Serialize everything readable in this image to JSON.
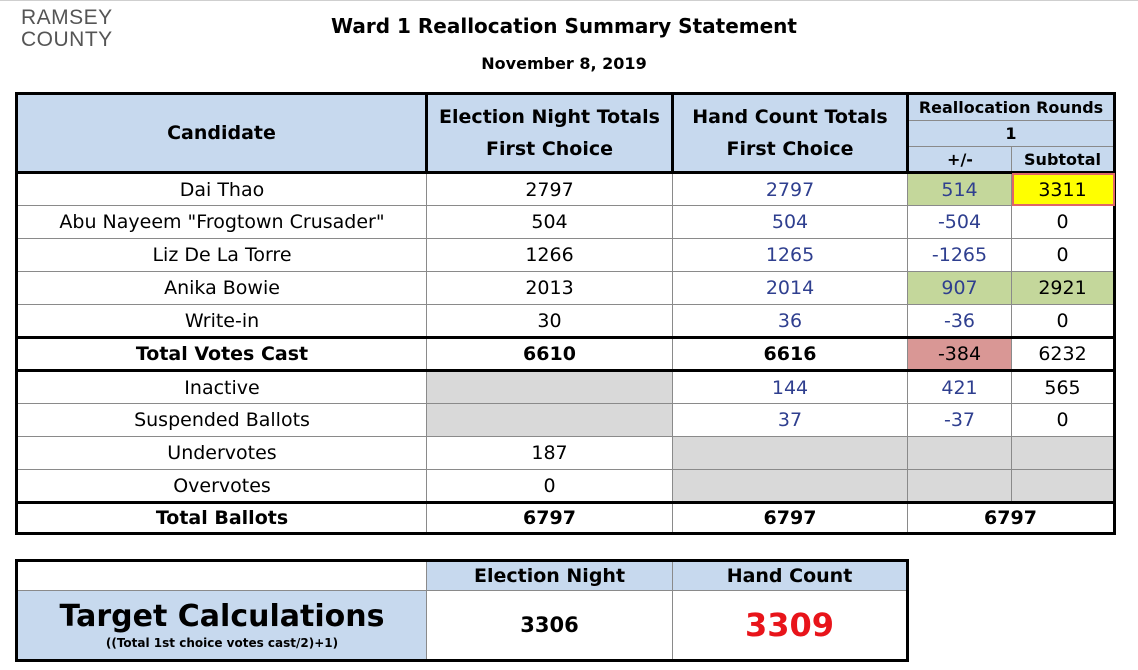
{
  "header": {
    "logo_line1": "RAMSEY",
    "logo_line2": "COUNTY",
    "title": "Ward 1 Reallocation Summary Statement",
    "date": "November 8, 2019"
  },
  "table": {
    "col_candidate": "Candidate",
    "col_election_line1": "Election Night Totals",
    "col_election_line2": "First Choice",
    "col_hand_line1": "Hand Count Totals",
    "col_hand_line2": "First Choice",
    "col_realloc": "Reallocation Rounds",
    "round": "1",
    "col_plusminus": "+/-",
    "col_subtotal": "Subtotal",
    "rows": [
      {
        "name": "Dai Thao",
        "election": "2797",
        "hand": "2797",
        "plusminus": "514",
        "subtotal": "3311"
      },
      {
        "name": "Abu Nayeem \"Frogtown Crusader\"",
        "election": "504",
        "hand": "504",
        "plusminus": "-504",
        "subtotal": "0"
      },
      {
        "name": "Liz De La Torre",
        "election": "1266",
        "hand": "1265",
        "plusminus": "-1265",
        "subtotal": "0"
      },
      {
        "name": "Anika Bowie",
        "election": "2013",
        "hand": "2014",
        "plusminus": "907",
        "subtotal": "2921"
      },
      {
        "name": "Write-in",
        "election": "30",
        "hand": "36",
        "plusminus": "-36",
        "subtotal": "0"
      },
      {
        "name": "Total Votes Cast",
        "election": "6610",
        "hand": "6616",
        "plusminus": "-384",
        "subtotal": "6232"
      },
      {
        "name": "Inactive",
        "election": "",
        "hand": "144",
        "plusminus": "421",
        "subtotal": "565"
      },
      {
        "name": "Suspended Ballots",
        "election": "",
        "hand": "37",
        "plusminus": "-37",
        "subtotal": "0"
      },
      {
        "name": "Undervotes",
        "election": "187",
        "hand": "",
        "plusminus": "",
        "subtotal": ""
      },
      {
        "name": "Overvotes",
        "election": "0",
        "hand": "",
        "plusminus": "",
        "subtotal": ""
      },
      {
        "name": "Total Ballots",
        "election": "6797",
        "hand": "6797",
        "realloc_total": "6797"
      }
    ]
  },
  "target": {
    "col_election": "Election Night",
    "col_hand": "Hand Count",
    "label": "Target Calculations",
    "formula": "((Total 1st choice votes cast/2)+1)",
    "election_value": "3306",
    "hand_value": "3309"
  },
  "colors": {
    "header_blue": "#c7d9ee",
    "gray": "#d9d9d9",
    "green": "#c4d79b",
    "red": "#d99795",
    "yellow": "#ffff00",
    "target_red": "#e8141a"
  }
}
